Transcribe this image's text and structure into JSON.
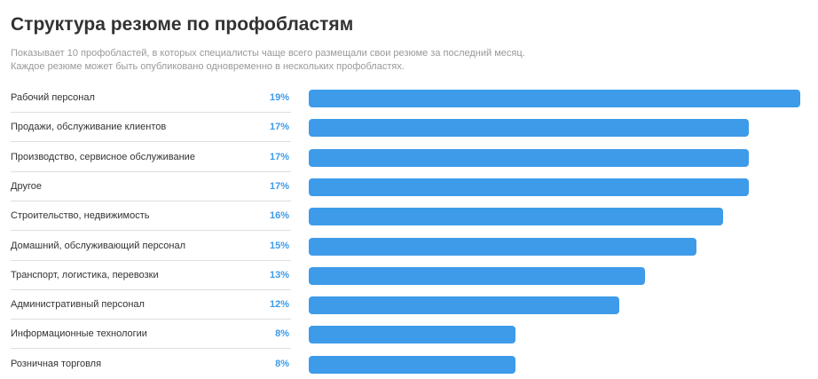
{
  "header": {
    "title": "Структура резюме по профобластям",
    "subtitle": "Показывает 10 профобластей, в которых специалисты чаще всего размещали свои резюме за последний месяц. Каждое резюме может быть опубликовано одновременно в нескольких профобластях."
  },
  "colors": {
    "bar": "#3d9be9",
    "value_text": "#3d9be9"
  },
  "chart_data": {
    "type": "bar",
    "orientation": "horizontal",
    "title": "Структура резюме по профобластям",
    "categories": [
      "Рабочий персонал",
      "Продажи, обслуживание клиентов",
      "Производство, сервисное обслуживание",
      "Другое",
      "Строительство, недвижимость",
      "Домашний, обслуживающий персонал",
      "Транспорт, логистика, перевозки",
      "Административный персонал",
      "Информационные технологии",
      "Розничная торговля"
    ],
    "values": [
      19,
      17,
      17,
      17,
      16,
      15,
      13,
      12,
      8,
      8
    ],
    "value_labels": [
      "19%",
      "17%",
      "17%",
      "17%",
      "16%",
      "15%",
      "13%",
      "12%",
      "8%",
      "8%"
    ],
    "unit": "%",
    "xlim": [
      0,
      19
    ]
  }
}
